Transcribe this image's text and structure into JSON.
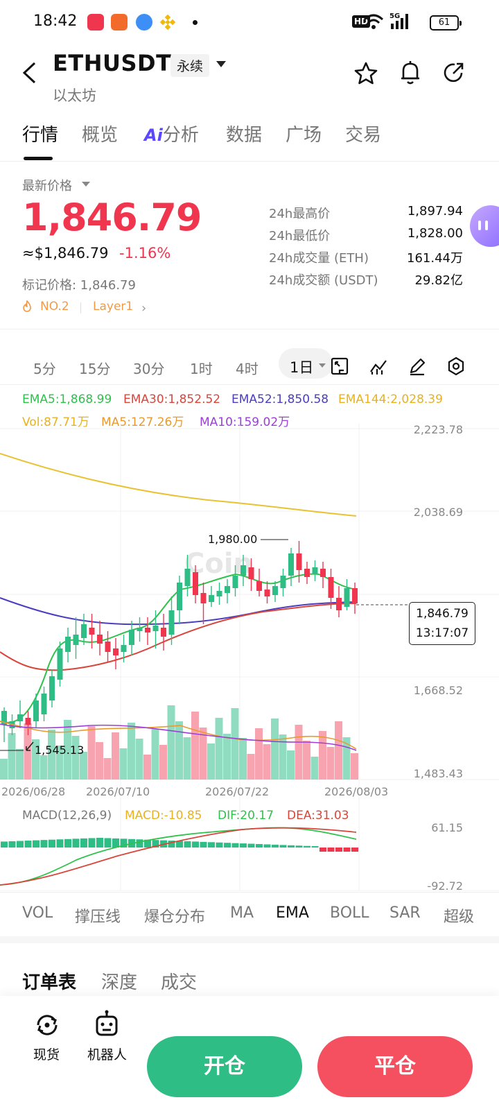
{
  "status_bar": {
    "time": "18:42",
    "battery": "61",
    "hd": "HD",
    "net": "5G"
  },
  "header": {
    "symbol": "ETHUSDT",
    "contract_type": "永续",
    "name": "以太坊"
  },
  "tabs": [
    {
      "label": "行情"
    },
    {
      "label": "概览"
    },
    {
      "label": "分析",
      "prefix": "Ai"
    },
    {
      "label": "数据"
    },
    {
      "label": "广场"
    },
    {
      "label": "交易"
    }
  ],
  "price": {
    "label": "最新价格",
    "last": "1,846.79",
    "usd": "≈$1,846.79",
    "change": "-1.16%",
    "mark": "标记价格: 1,846.79",
    "rank_tag": "NO.2",
    "category_tag": "Layer1"
  },
  "stats": [
    {
      "label": "24h最高价",
      "value": "1,897.94"
    },
    {
      "label": "24h最低价",
      "value": "1,828.00"
    },
    {
      "label": "24h成交量 (ETH)",
      "value": "161.44万"
    },
    {
      "label": "24h成交额 (USDT)",
      "value": "29.82亿"
    }
  ],
  "timeframes": [
    "5分",
    "15分",
    "30分",
    "1时",
    "4时"
  ],
  "active_timeframe": "1日",
  "indicators_top": {
    "ema5": "EMA5:1,868.99",
    "ema30": "EMA30:1,852.52",
    "ema52": "EMA52:1,850.58",
    "ema144": "EMA144:2,028.39",
    "vol": "Vol:87.71万",
    "ma5": "MA5:127.26万",
    "ma10": "MA10:159.02万"
  },
  "price_axis": [
    "2,223.78",
    "2,038.69",
    "1,668.52",
    "1,483.43"
  ],
  "chart_annotations": {
    "high": "1,980.00",
    "low": "1,545.13",
    "current_price": "1,846.79",
    "countdown": "13:17:07"
  },
  "dates": [
    "2026/06/28",
    "2026/07/10",
    "2026/07/22",
    "2026/08/03"
  ],
  "macd": {
    "label": "MACD(12,26,9)",
    "macd": "MACD:-10.85",
    "dif": "DIF:20.17",
    "dea": "DEA:31.03",
    "axis_top": "61.15",
    "axis_bottom": "-92.72"
  },
  "indicator_tabs": [
    "VOL",
    "撑压线",
    "爆仓分布",
    "MA",
    "EMA",
    "BOLL",
    "SAR",
    "超级"
  ],
  "orderbook_tabs": [
    "订单表",
    "深度",
    "成交"
  ],
  "bottom_bar": {
    "spot": "现货",
    "bot": "机器人",
    "open": "开仓",
    "close": "平仓"
  },
  "colors": {
    "up": "#2ebd85",
    "down": "#f0354e",
    "ema5": "#2ec24a",
    "ema30": "#d9453a",
    "ema52": "#4a3dbf",
    "ema144": "#e8c230"
  }
}
